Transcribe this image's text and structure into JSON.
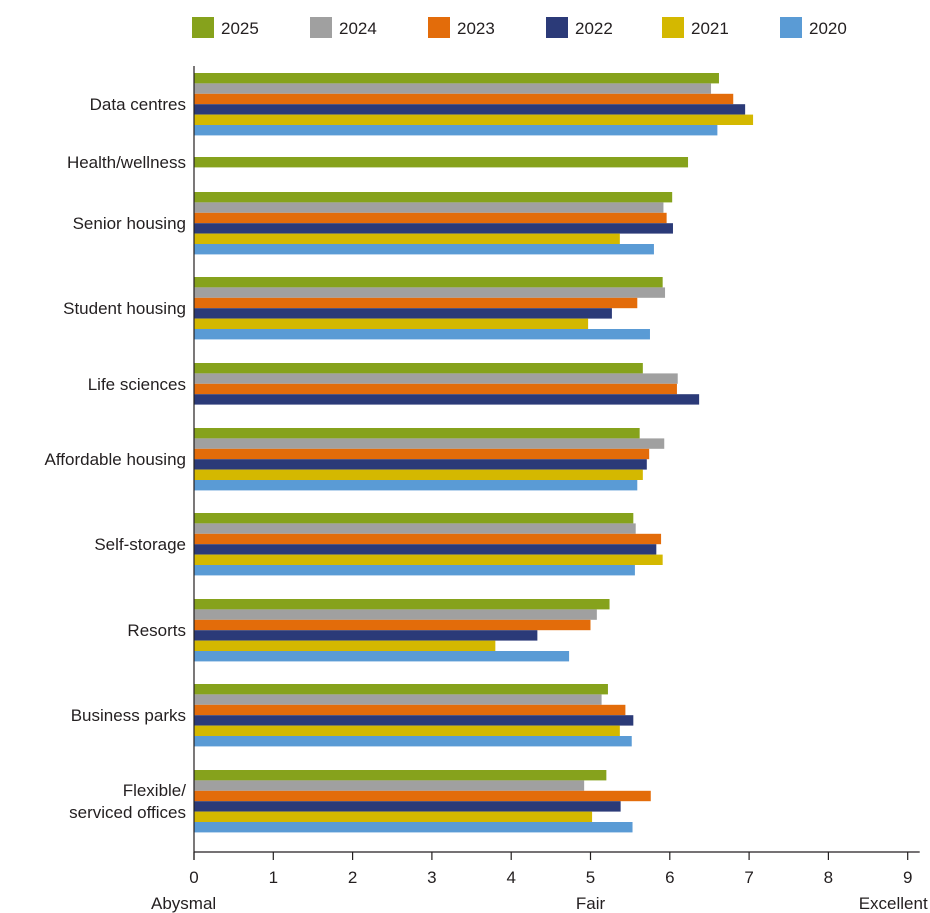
{
  "chart_data": {
    "type": "bar",
    "orientation": "horizontal",
    "title": "",
    "xlabel": "",
    "ylabel": "",
    "xlim": [
      0,
      9
    ],
    "x_ticks": [
      0,
      1,
      2,
      3,
      4,
      5,
      6,
      7,
      8,
      9
    ],
    "scale_labels": [
      {
        "value": 0,
        "text": "Abysmal"
      },
      {
        "value": 5,
        "text": "Fair"
      },
      {
        "value": 9,
        "text": "Excellent"
      }
    ],
    "grid": false,
    "legend_position": "top",
    "categories": [
      [
        "Data centres"
      ],
      [
        "Health/wellness"
      ],
      [
        "Senior housing"
      ],
      [
        "Student housing"
      ],
      [
        "Life sciences"
      ],
      [
        "Affordable housing"
      ],
      [
        "Self-storage"
      ],
      [
        "Resorts"
      ],
      [
        "Business parks"
      ],
      [
        "Flexible/",
        "serviced offices"
      ]
    ],
    "series": [
      {
        "name": "2025",
        "color": "#86a21c",
        "values": [
          6.62,
          6.23,
          6.03,
          5.91,
          5.66,
          5.62,
          5.54,
          5.24,
          5.22,
          5.2
        ]
      },
      {
        "name": "2024",
        "color": "#a0a0a0",
        "values": [
          6.52,
          null,
          5.92,
          5.94,
          6.1,
          5.93,
          5.57,
          5.08,
          5.14,
          4.92
        ]
      },
      {
        "name": "2023",
        "color": "#e36c0a",
        "values": [
          6.8,
          null,
          5.96,
          5.59,
          6.09,
          5.74,
          5.89,
          5.0,
          5.44,
          5.76
        ]
      },
      {
        "name": "2022",
        "color": "#2b3a78",
        "values": [
          6.95,
          null,
          6.04,
          5.27,
          6.37,
          5.71,
          5.83,
          4.33,
          5.54,
          5.38
        ]
      },
      {
        "name": "2021",
        "color": "#d4b800",
        "values": [
          7.05,
          null,
          5.37,
          4.97,
          null,
          5.66,
          5.91,
          3.8,
          5.37,
          5.02
        ]
      },
      {
        "name": "2020",
        "color": "#5a9bd5",
        "values": [
          6.6,
          null,
          5.8,
          5.75,
          null,
          5.59,
          5.56,
          4.73,
          5.52,
          5.53
        ]
      }
    ]
  }
}
